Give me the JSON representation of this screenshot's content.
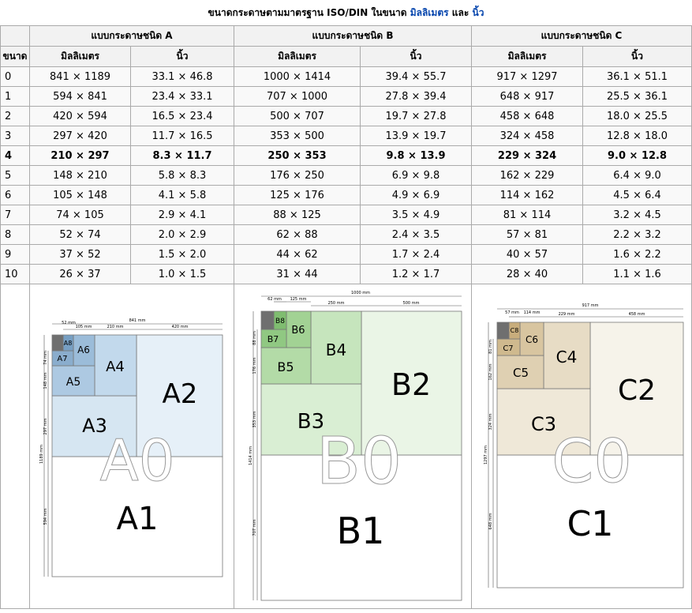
{
  "caption": {
    "prefix": "ขนาดกระดาษตามมาตรฐาน ISO/DIN ในขนาด",
    "mm_link": "มิลลิเมตร",
    "and": "และ",
    "in_link": "นิ้ว"
  },
  "headers": {
    "series_a": "แบบกระดาษชนิด A",
    "series_b": "แบบกระดาษชนิด B",
    "series_c": "แบบกระดาษชนิด C",
    "size": "ขนาด",
    "mm": "มิลลิเมตร",
    "inch": "นิ้ว"
  },
  "rows": [
    {
      "size": "0",
      "a_mm": "841 × 1189",
      "a_in": "33.1 × 46.8",
      "b_mm": "1000 × 1414",
      "b_in": "39.4 × 55.7",
      "c_mm": "917 × 1297",
      "c_in": "36.1 × 51.1"
    },
    {
      "size": "1",
      "a_mm": "594 × 841",
      "a_in": "23.4 × 33.1",
      "b_mm": "707 × 1000",
      "b_in": "27.8 × 39.4",
      "c_mm": "648 × 917",
      "c_in": "25.5 × 36.1"
    },
    {
      "size": "2",
      "a_mm": "420 × 594",
      "a_in": "16.5 × 23.4",
      "b_mm": "500 × 707",
      "b_in": "19.7 × 27.8",
      "c_mm": "458 × 648",
      "c_in": "18.0 × 25.5"
    },
    {
      "size": "3",
      "a_mm": "297 × 420",
      "a_in": "11.7 × 16.5",
      "b_mm": "353 × 500",
      "b_in": "13.9 × 19.7",
      "c_mm": "324 × 458",
      "c_in": "12.8 × 18.0"
    },
    {
      "size": "4",
      "a_mm": "210 × 297",
      "a_in": "8.3 × 11.7",
      "b_mm": "250 × 353",
      "b_in": "9.8 × 13.9",
      "c_mm": "229 × 324",
      "c_in": "9.0 × 12.8"
    },
    {
      "size": "5",
      "a_mm": "148 × 210",
      "a_in": "5.8 × 8.3",
      "b_mm": "176 × 250",
      "b_in": "6.9 × 9.8",
      "c_mm": "162 × 229",
      "c_in": "6.4 × 9.0"
    },
    {
      "size": "6",
      "a_mm": "105 × 148",
      "a_in": "4.1 × 5.8",
      "b_mm": "125 × 176",
      "b_in": "4.9 × 6.9",
      "c_mm": "114 × 162",
      "c_in": "4.5 × 6.4"
    },
    {
      "size": "7",
      "a_mm": "74 × 105",
      "a_in": "2.9 × 4.1",
      "b_mm": "88 × 125",
      "b_in": "3.5 × 4.9",
      "c_mm": "81 × 114",
      "c_in": "3.2 × 4.5"
    },
    {
      "size": "8",
      "a_mm": "52 × 74",
      "a_in": "2.0 × 2.9",
      "b_mm": "62 × 88",
      "b_in": "2.4 × 3.5",
      "c_mm": "57 × 81",
      "c_in": "2.2 × 3.2"
    },
    {
      "size": "9",
      "a_mm": "37 × 52",
      "a_in": "1.5 × 2.0",
      "b_mm": "44 × 62",
      "b_in": "1.7 × 2.4",
      "c_mm": "40 × 57",
      "c_in": "1.6 × 2.2"
    },
    {
      "size": "10",
      "a_mm": "26 × 37",
      "a_in": "1.0 × 1.5",
      "b_mm": "31 × 44",
      "b_in": "1.2 × 1.7",
      "c_mm": "28 × 40",
      "c_in": "1.1 × 1.6"
    }
  ],
  "diagrams": {
    "a": {
      "colors": {
        "a2": "#e6f0f8",
        "a3": "#d6e6f2",
        "a4": "#c2d9ec",
        "a5": "#adc9e2",
        "a6": "#9bbcd9",
        "a7": "#8aadcd",
        "a8": "#779fc3",
        "a9": "#6f6f6f"
      },
      "big_label": "A0",
      "labels": {
        "a1": "A1",
        "a2": "A2",
        "a3": "A3",
        "a4": "A4",
        "a5": "A5",
        "a6": "A6",
        "a7": "A7",
        "a8": "A8"
      },
      "dims": {
        "w0": "841 mm",
        "w2": "420 mm",
        "w4": "210 mm",
        "w6": "105 mm",
        "w8": "52 mm",
        "h0": "1189 mm",
        "h1": "594 mm",
        "h3": "297 mm",
        "h5": "148 mm",
        "h7": "74 mm"
      }
    },
    "b": {
      "colors": {
        "b2": "#eaf5e6",
        "b3": "#d9eed3",
        "b4": "#c6e5bd",
        "b5": "#b3dba7",
        "b6": "#a2d294",
        "b7": "#90c882",
        "b8": "#7fbd70",
        "b9": "#6f6f6f"
      },
      "big_label": "B0",
      "labels": {
        "b1": "B1",
        "b2": "B2",
        "b3": "B3",
        "b4": "B4",
        "b5": "B5",
        "b6": "B6",
        "b7": "B7",
        "b8": "B8"
      },
      "dims": {
        "w0": "1000 mm",
        "w2": "500 mm",
        "w4": "250 mm",
        "w6": "125 mm",
        "w8": "62 mm",
        "h0": "1414 mm",
        "h1": "707 mm",
        "h3": "353 mm",
        "h5": "176 mm",
        "h7": "88 mm"
      }
    },
    "c": {
      "colors": {
        "c2": "#f6f3ea",
        "c3": "#efe8d8",
        "c4": "#e7dcc5",
        "c5": "#dfd0b2",
        "c6": "#d8c5a0",
        "c7": "#cfb98e",
        "c8": "#c8ad7c",
        "c9": "#6f6f6f"
      },
      "big_label": "C0",
      "labels": {
        "c1": "C1",
        "c2": "C2",
        "c3": "C3",
        "c4": "C4",
        "c5": "C5",
        "c6": "C6",
        "c7": "C7",
        "c8": "C8"
      },
      "dims": {
        "w0": "917 mm",
        "w2": "458 mm",
        "w4": "229 mm",
        "w6": "114 mm",
        "w8": "57 mm",
        "h0": "1297 mm",
        "h1": "648 mm",
        "h3": "324 mm",
        "h5": "162 mm",
        "h7": "81 mm"
      }
    }
  }
}
